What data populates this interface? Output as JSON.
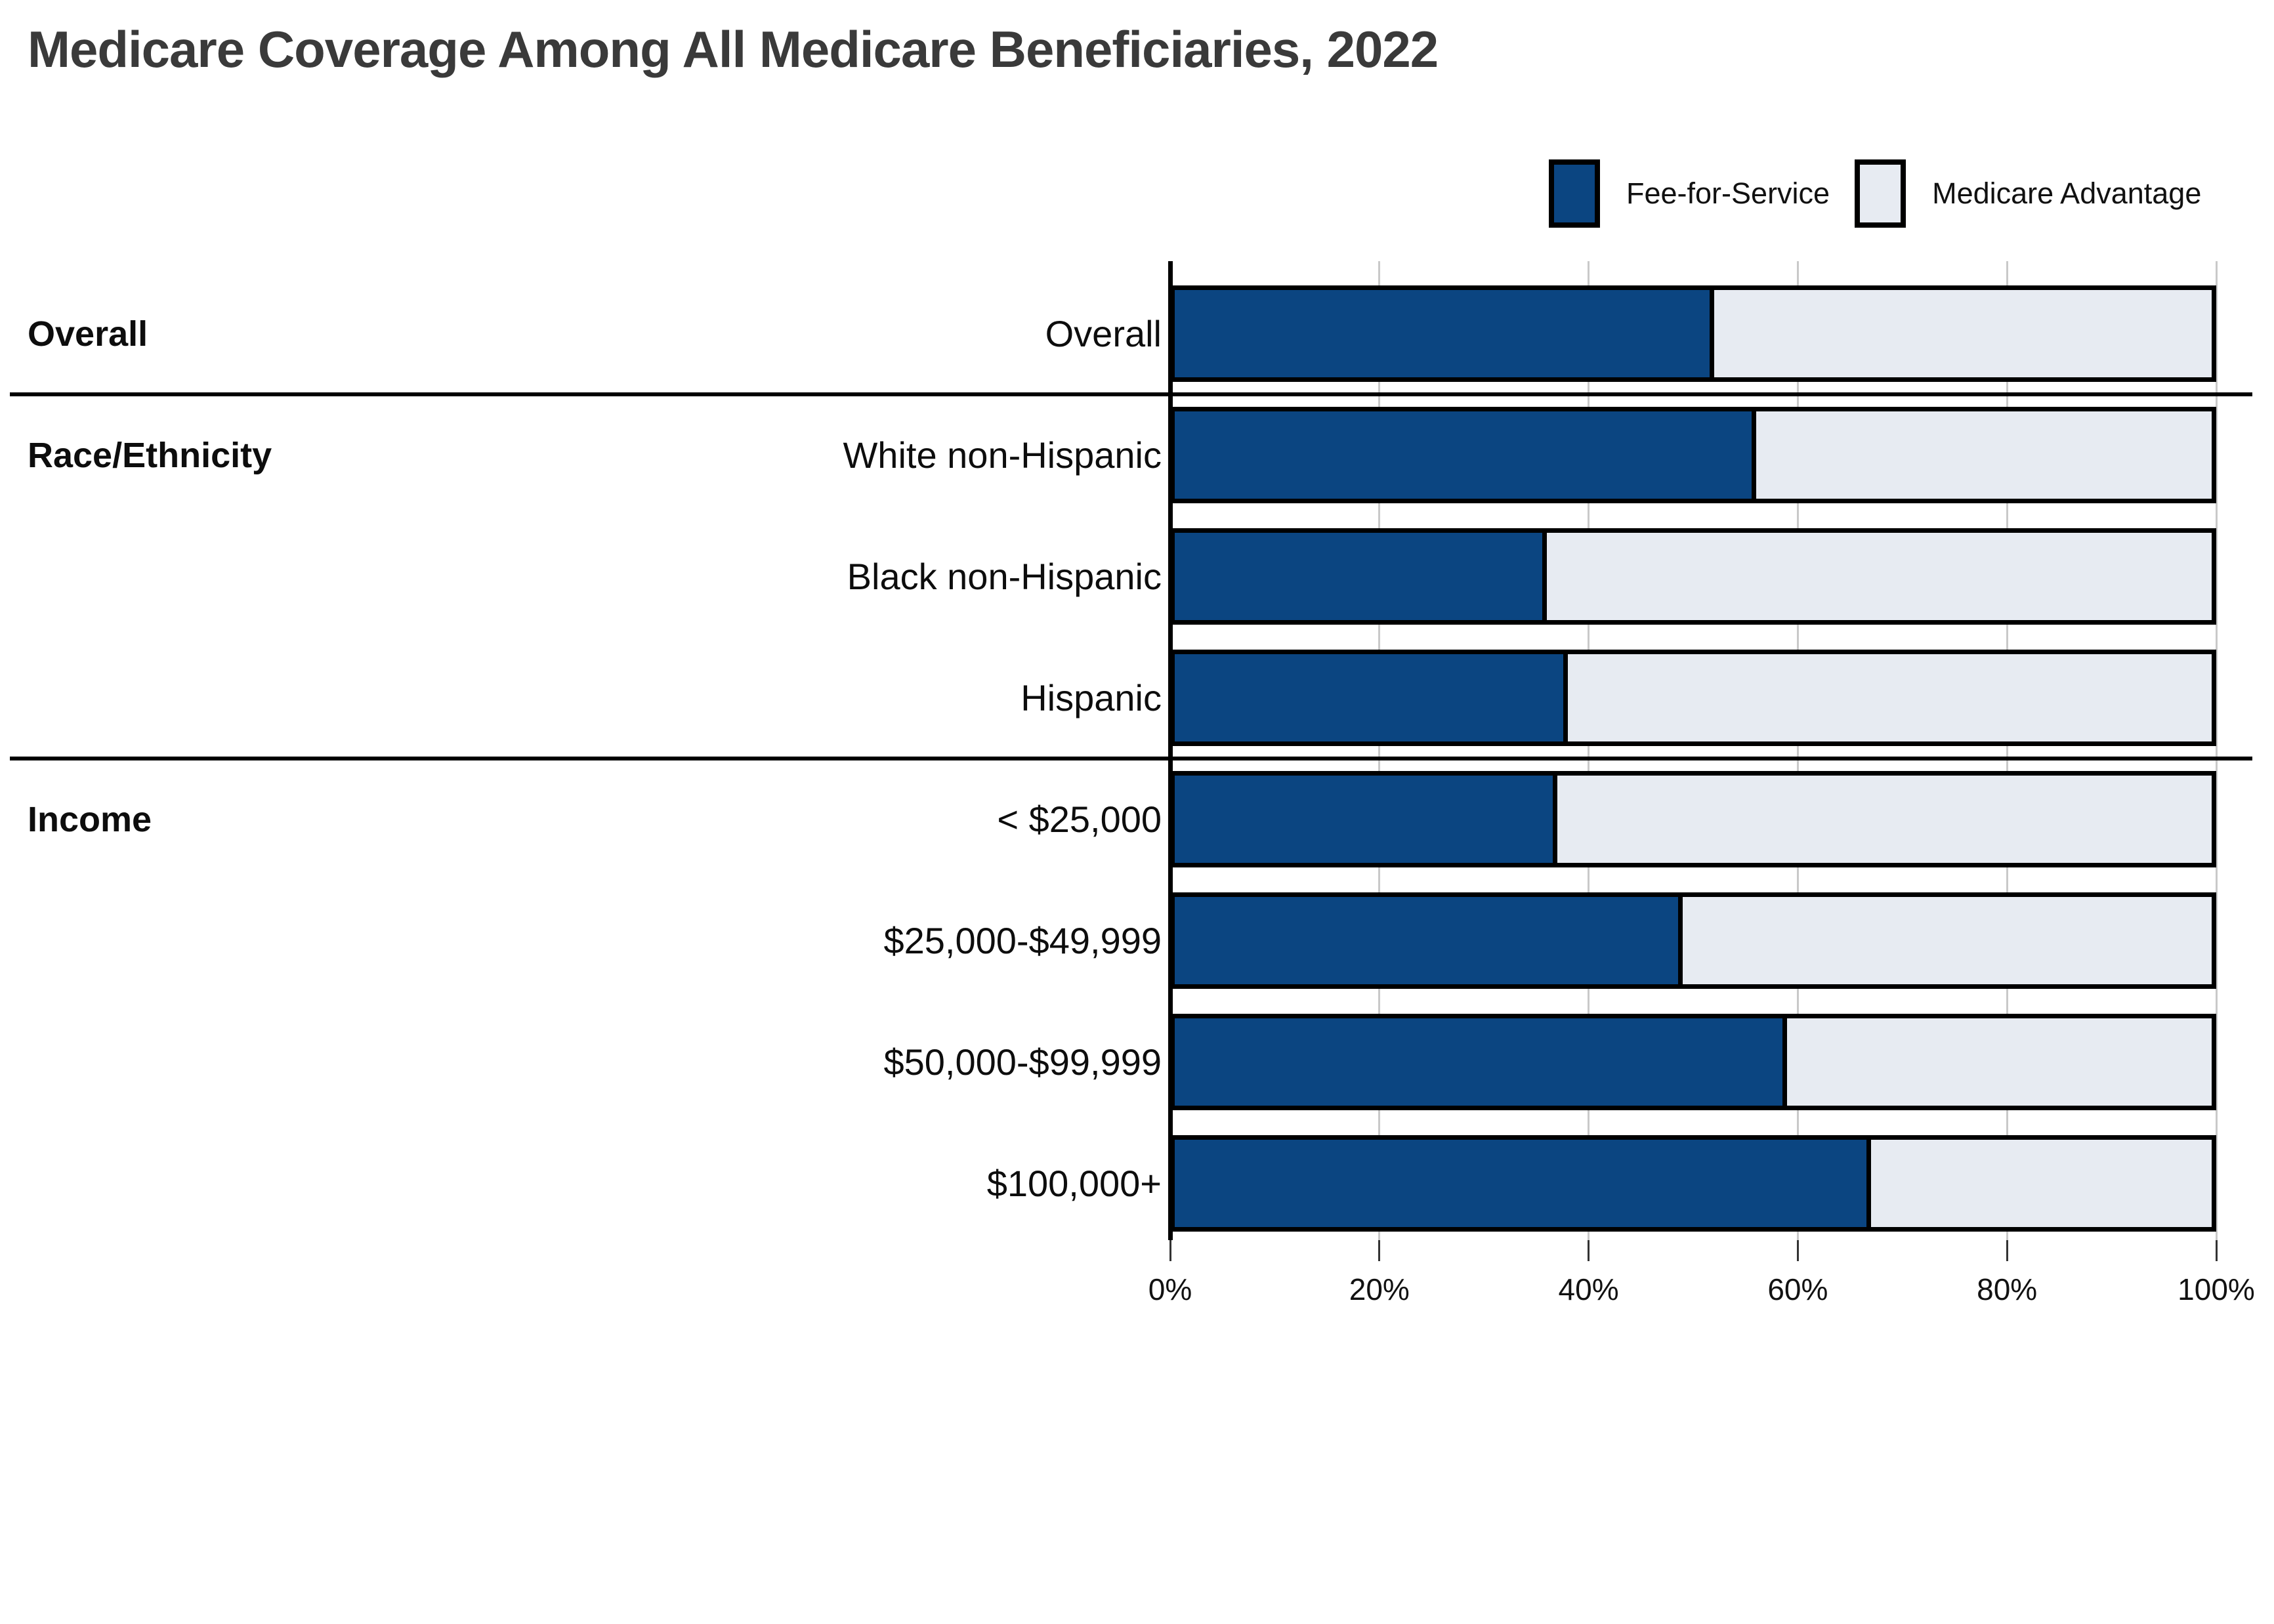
{
  "title": "Medicare Coverage Among All Medicare Beneficiaries, 2022",
  "legend": [
    {
      "label": "Fee-for-Service",
      "color": "#0b4581"
    },
    {
      "label": "Medicare Advantage",
      "color": "#e7ebf2"
    }
  ],
  "colors": {
    "fee_for_service": "#0b4581",
    "medicare_advantage": "#e7ebf2",
    "bar_border": "#000000",
    "gridline": "#c9c9c9",
    "axis": "#000000",
    "title_text": "#3a3a3a",
    "label_text": "#0d0d0d"
  },
  "chart_data": {
    "type": "bar",
    "stacked": true,
    "orientation": "horizontal",
    "title": "Medicare Coverage Among All Medicare Beneficiaries, 2022",
    "xlabel": "",
    "ylabel": "",
    "unit": "%",
    "xlim": [
      0,
      100
    ],
    "x_ticks": [
      "0%",
      "20%",
      "40%",
      "60%",
      "80%",
      "100%"
    ],
    "grid": true,
    "legend_position": "top-right",
    "series_names": [
      "Fee-for-Service",
      "Medicare Advantage"
    ],
    "sections": [
      {
        "header": "Overall",
        "rows": [
          {
            "label": "Overall",
            "fee_for_service": 52,
            "medicare_advantage": 48
          }
        ]
      },
      {
        "header": "Race/Ethnicity",
        "rows": [
          {
            "label": "White non-Hispanic",
            "fee_for_service": 56,
            "medicare_advantage": 44
          },
          {
            "label": "Black non-Hispanic",
            "fee_for_service": 36,
            "medicare_advantage": 64
          },
          {
            "label": "Hispanic",
            "fee_for_service": 38,
            "medicare_advantage": 62
          }
        ]
      },
      {
        "header": "Income",
        "rows": [
          {
            "label": "< $25,000",
            "fee_for_service": 37,
            "medicare_advantage": 63
          },
          {
            "label": "$25,000-$49,999",
            "fee_for_service": 49,
            "medicare_advantage": 51
          },
          {
            "label": "$50,000-$99,999",
            "fee_for_service": 59,
            "medicare_advantage": 41
          },
          {
            "label": "$100,000+",
            "fee_for_service": 67,
            "medicare_advantage": 33
          }
        ]
      }
    ]
  }
}
